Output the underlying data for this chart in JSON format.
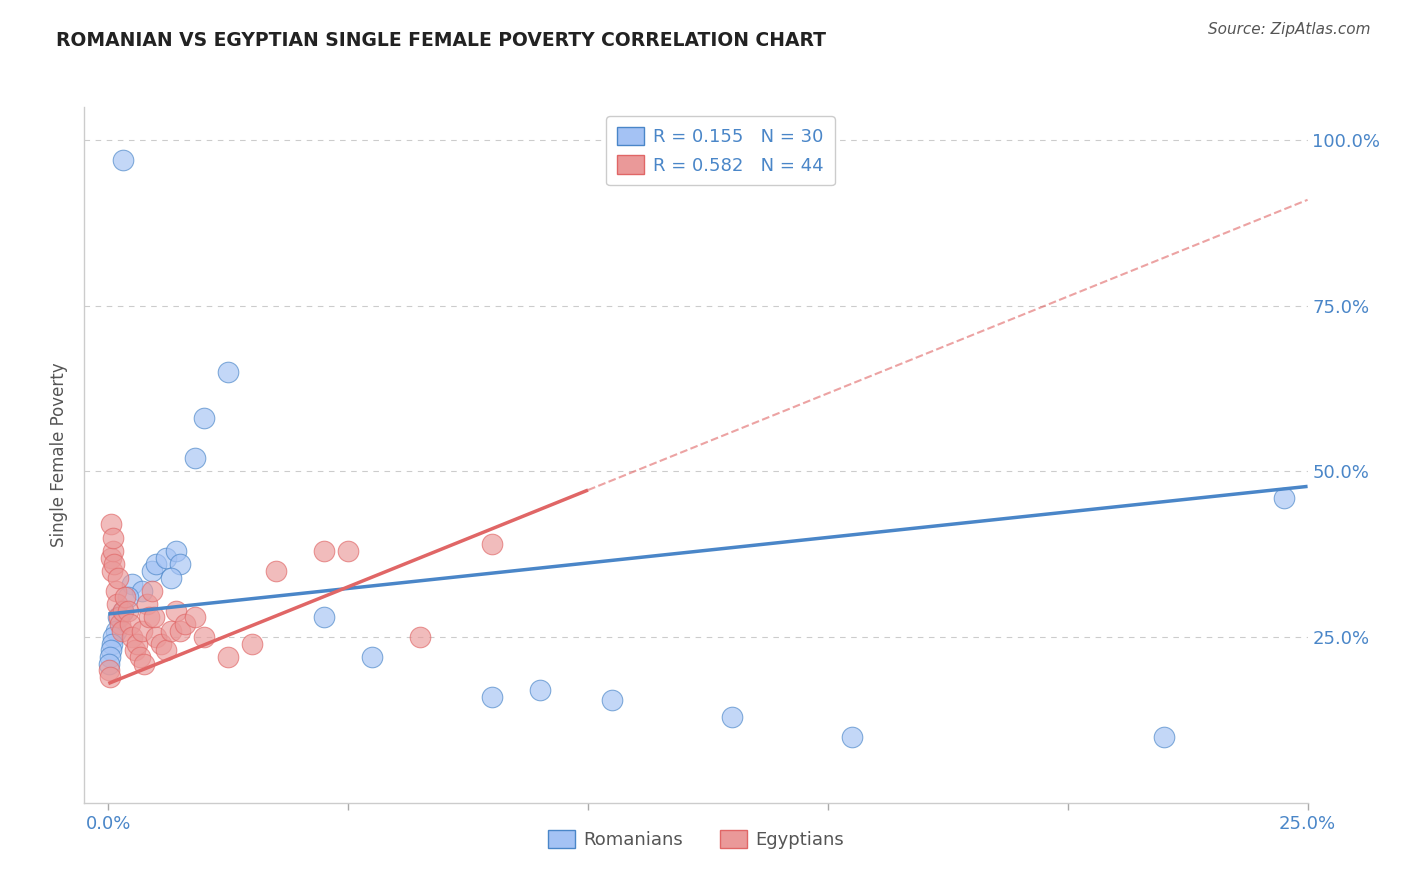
{
  "title": "ROMANIAN VS EGYPTIAN SINGLE FEMALE POVERTY CORRELATION CHART",
  "source": "Source: ZipAtlas.com",
  "ylabel": "Single Female Poverty",
  "y_tick_labels": [
    "25.0%",
    "50.0%",
    "75.0%",
    "100.0%"
  ],
  "y_tick_values": [
    25.0,
    50.0,
    75.0,
    100.0
  ],
  "x_tick_values": [
    0.0,
    5.0,
    10.0,
    15.0,
    20.0,
    25.0
  ],
  "x_tick_labels": [
    "0.0%",
    "",
    "",
    "",
    "",
    "25.0%"
  ],
  "legend_line1": "R = 0.155   N = 30",
  "legend_line2": "R = 0.582   N = 44",
  "legend_label_blue": "Romanians",
  "legend_label_pink": "Egyptians",
  "blue_color": "#a4c2f4",
  "pink_color": "#ea9999",
  "blue_line_color": "#4a86c8",
  "pink_line_color": "#e06666",
  "dashed_line_color": "#e06666",
  "blue_scatter": [
    [
      0.3,
      97.0
    ],
    [
      2.5,
      65.0
    ],
    [
      2.0,
      58.0
    ],
    [
      1.8,
      52.0
    ],
    [
      0.5,
      33.0
    ],
    [
      0.7,
      32.0
    ],
    [
      0.9,
      35.0
    ],
    [
      1.0,
      36.0
    ],
    [
      1.2,
      37.0
    ],
    [
      1.4,
      38.0
    ],
    [
      1.5,
      36.0
    ],
    [
      1.3,
      34.0
    ],
    [
      0.4,
      31.0
    ],
    [
      0.3,
      29.0
    ],
    [
      0.2,
      28.0
    ],
    [
      0.15,
      26.0
    ],
    [
      0.1,
      25.0
    ],
    [
      0.08,
      24.0
    ],
    [
      0.05,
      23.0
    ],
    [
      0.03,
      22.0
    ],
    [
      0.02,
      21.0
    ],
    [
      4.5,
      28.0
    ],
    [
      5.5,
      22.0
    ],
    [
      8.0,
      16.0
    ],
    [
      9.0,
      17.0
    ],
    [
      10.5,
      15.5
    ],
    [
      13.0,
      13.0
    ],
    [
      15.5,
      10.0
    ],
    [
      22.0,
      10.0
    ],
    [
      24.5,
      46.0
    ]
  ],
  "pink_scatter": [
    [
      0.05,
      37.0
    ],
    [
      0.08,
      35.0
    ],
    [
      0.1,
      38.0
    ],
    [
      0.12,
      36.0
    ],
    [
      0.15,
      32.0
    ],
    [
      0.18,
      30.0
    ],
    [
      0.2,
      34.0
    ],
    [
      0.22,
      28.0
    ],
    [
      0.25,
      27.0
    ],
    [
      0.28,
      26.0
    ],
    [
      0.3,
      29.0
    ],
    [
      0.35,
      31.0
    ],
    [
      0.4,
      29.0
    ],
    [
      0.45,
      27.0
    ],
    [
      0.5,
      25.0
    ],
    [
      0.55,
      23.0
    ],
    [
      0.6,
      24.0
    ],
    [
      0.65,
      22.0
    ],
    [
      0.7,
      26.0
    ],
    [
      0.75,
      21.0
    ],
    [
      0.8,
      30.0
    ],
    [
      0.85,
      28.0
    ],
    [
      0.9,
      32.0
    ],
    [
      0.95,
      28.0
    ],
    [
      1.0,
      25.0
    ],
    [
      1.1,
      24.0
    ],
    [
      1.2,
      23.0
    ],
    [
      1.3,
      26.0
    ],
    [
      1.4,
      29.0
    ],
    [
      1.5,
      26.0
    ],
    [
      1.6,
      27.0
    ],
    [
      1.8,
      28.0
    ],
    [
      2.0,
      25.0
    ],
    [
      2.5,
      22.0
    ],
    [
      3.0,
      24.0
    ],
    [
      0.05,
      42.0
    ],
    [
      0.1,
      40.0
    ],
    [
      3.5,
      35.0
    ],
    [
      4.5,
      38.0
    ],
    [
      5.0,
      38.0
    ],
    [
      6.5,
      25.0
    ],
    [
      8.0,
      39.0
    ],
    [
      0.02,
      20.0
    ],
    [
      0.03,
      19.0
    ]
  ],
  "xlim": [
    -0.5,
    25.0
  ],
  "ylim": [
    0.0,
    105.0
  ],
  "background_color": "#ffffff",
  "grid_color": "#cccccc",
  "blue_intercept": 28.5,
  "blue_slope": 0.77,
  "pink_intercept": 18.0,
  "pink_slope": 2.92,
  "dashed_intercept": 18.0,
  "dashed_slope": 2.92
}
